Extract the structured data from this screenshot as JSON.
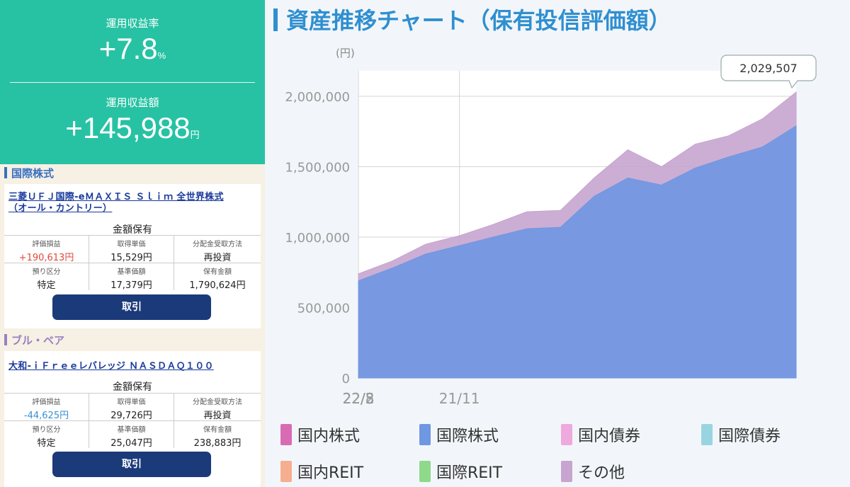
{
  "summary": {
    "return_rate_label": "運用収益率",
    "return_rate_value": "+7.8",
    "return_rate_unit": "%",
    "return_amount_label": "運用収益額",
    "return_amount_value": "+145,988",
    "return_amount_unit": "円"
  },
  "categories": [
    {
      "title": "国際株式",
      "fund": {
        "name_line1": "三菱ＵＦＪ国際-eＭＡＸＩＳ Ｓｌｉｍ 全世界株式",
        "name_line2": "（オール・カントリー）",
        "holding_type": "金額保有",
        "fields": [
          {
            "key": "評価損益",
            "value": "+190,613円"
          },
          {
            "key": "取得単価",
            "value": "15,529円"
          },
          {
            "key": "分配金受取方法",
            "value": "再投資"
          },
          {
            "key": "預り区分",
            "value": "特定"
          },
          {
            "key": "基準価額",
            "value": "17,379円"
          },
          {
            "key": "保有金額",
            "value": "1,790,624円"
          }
        ],
        "trade_label": "取引"
      }
    },
    {
      "title": "ブル・ベア",
      "fund": {
        "name_line1": "大和-ｉＦｒｅｅレバレッジ ＮＡＳＤＡＱ１００",
        "holding_type": "金額保有",
        "fields": [
          {
            "key": "評価損益",
            "value": "-44,625円"
          },
          {
            "key": "取得単価",
            "value": "29,726円"
          },
          {
            "key": "分配金受取方法",
            "value": "再投資"
          },
          {
            "key": "預り区分",
            "value": "特定"
          },
          {
            "key": "基準価額",
            "value": "25,047円"
          },
          {
            "key": "保有金額",
            "value": "238,883円"
          }
        ],
        "trade_label": "取引"
      }
    }
  ],
  "colors": {
    "gain": "#e0483a",
    "loss": "#3a8fd0",
    "accent": "#27c2a3",
    "button": "#1b3a7a"
  },
  "chart": {
    "title": "資産推移チャート（保有投信評価額）",
    "y_unit_label": "(円)",
    "tooltip": "2,029,507",
    "legend": [
      {
        "label": "国内株式",
        "color": "#d96bb5"
      },
      {
        "label": "国際株式",
        "color": "#6f97e2"
      },
      {
        "label": "国内債券",
        "color": "#eeaadd"
      },
      {
        "label": "国際債券",
        "color": "#99d5e0"
      },
      {
        "label": "国内REIT",
        "color": "#f5ae90"
      },
      {
        "label": "国際REIT",
        "color": "#8ed98a"
      },
      {
        "label": "その他",
        "color": "#c7a5cf"
      }
    ]
  },
  "chart_data": {
    "type": "area",
    "ylabel": "(円)",
    "ylim": [
      0,
      2000000
    ],
    "y_ticks": [
      "0",
      "500,000",
      "1,000,000",
      "1,500,000",
      "2,000,000"
    ],
    "x_ticks": [
      "21/11",
      "22/2",
      "22/5",
      "22/8"
    ],
    "grid": true,
    "x": [
      "21/08",
      "21/09",
      "21/10",
      "21/11",
      "21/12",
      "22/01",
      "22/02",
      "22/03",
      "22/04",
      "22/05",
      "22/06",
      "22/07",
      "22/08",
      "22/09"
    ],
    "series": [
      {
        "name": "国際株式",
        "values": [
          690000,
          780000,
          880000,
          940000,
          1000000,
          1060000,
          1070000,
          1290000,
          1420000,
          1370000,
          1490000,
          1570000,
          1640000,
          1790000
        ]
      },
      {
        "name": "その他",
        "values": [
          740000,
          830000,
          950000,
          1010000,
          1090000,
          1180000,
          1190000,
          1420000,
          1620000,
          1500000,
          1660000,
          1720000,
          1840000,
          2030000
        ]
      }
    ]
  }
}
